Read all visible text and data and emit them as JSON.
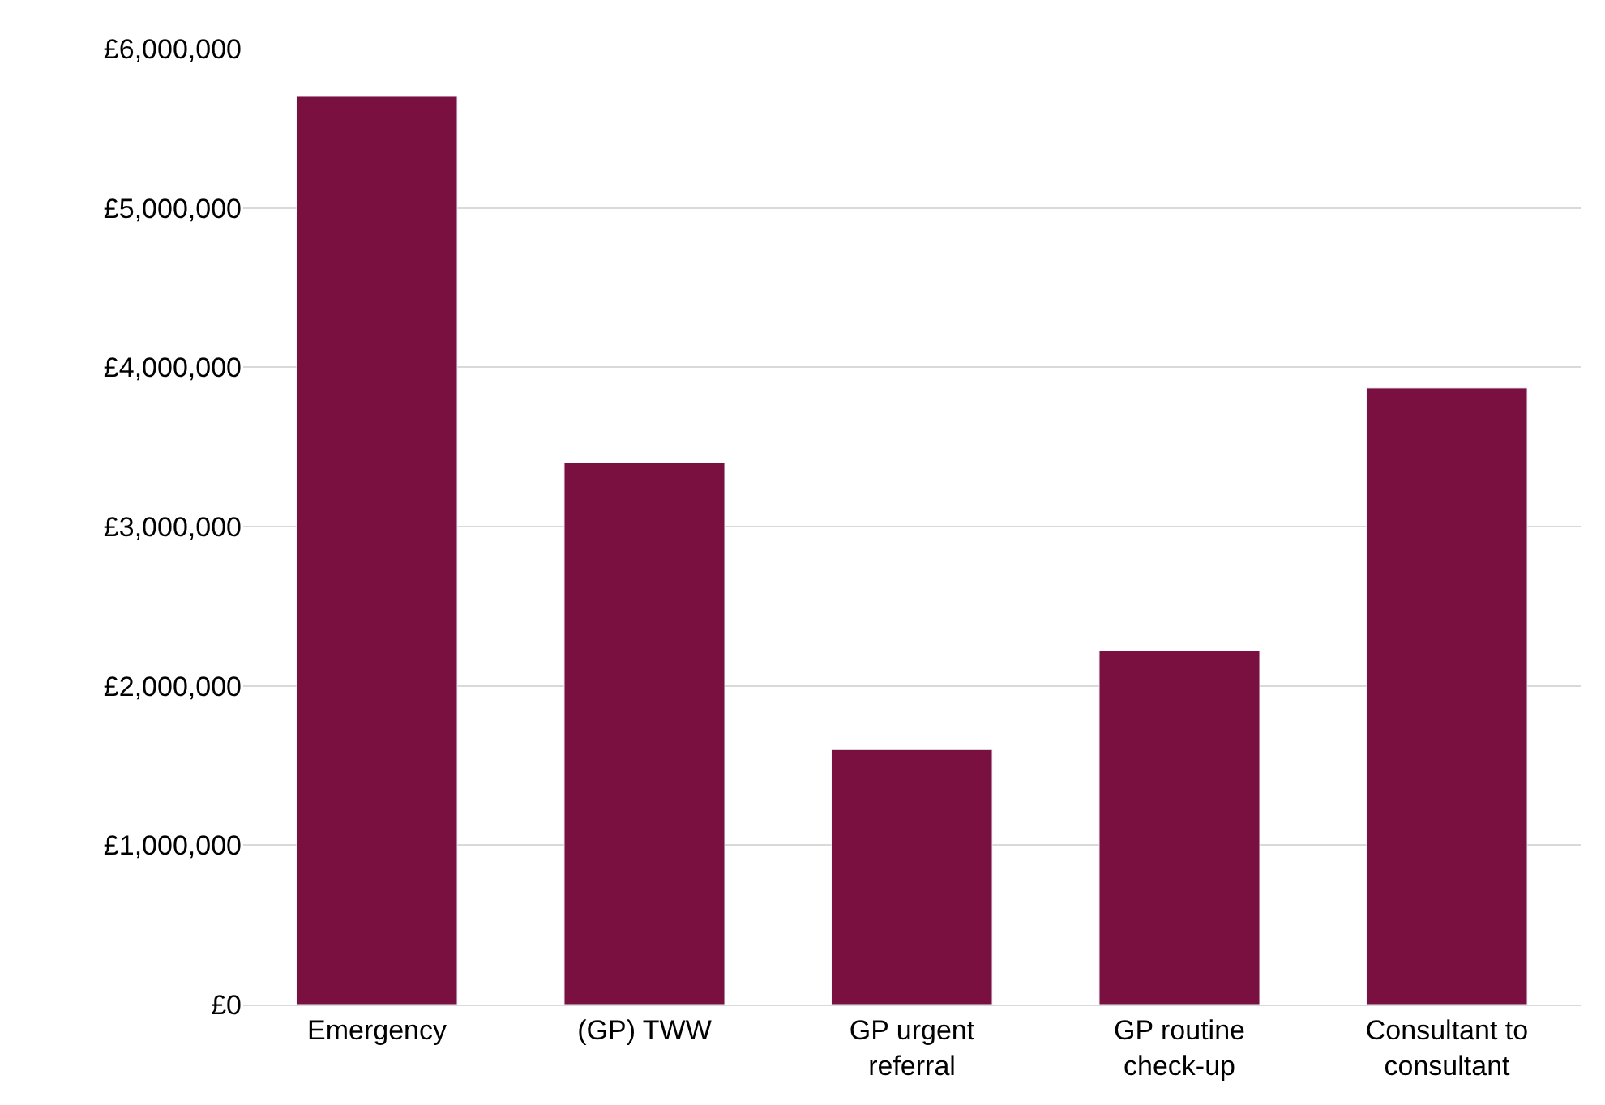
{
  "chart_data": {
    "type": "bar",
    "categories": [
      "Emergency",
      "(GP) TWW",
      "GP urgent referral",
      "GP routine check-up",
      "Consultant to consultant"
    ],
    "values": [
      5700000,
      3400000,
      1600000,
      2220000,
      3870000
    ],
    "color": "#7a1040",
    "ylim": [
      0,
      6000000
    ],
    "yticks": [
      {
        "value": 0,
        "label": "£0"
      },
      {
        "value": 1000000,
        "label": "£1,000,000"
      },
      {
        "value": 2000000,
        "label": "£2,000,000"
      },
      {
        "value": 3000000,
        "label": "£3,000,000"
      },
      {
        "value": 4000000,
        "label": "£4,000,000"
      },
      {
        "value": 5000000,
        "label": "£5,000,000"
      },
      {
        "value": 6000000,
        "label": "£6,000,000"
      }
    ],
    "grid": "y",
    "legend": false
  }
}
